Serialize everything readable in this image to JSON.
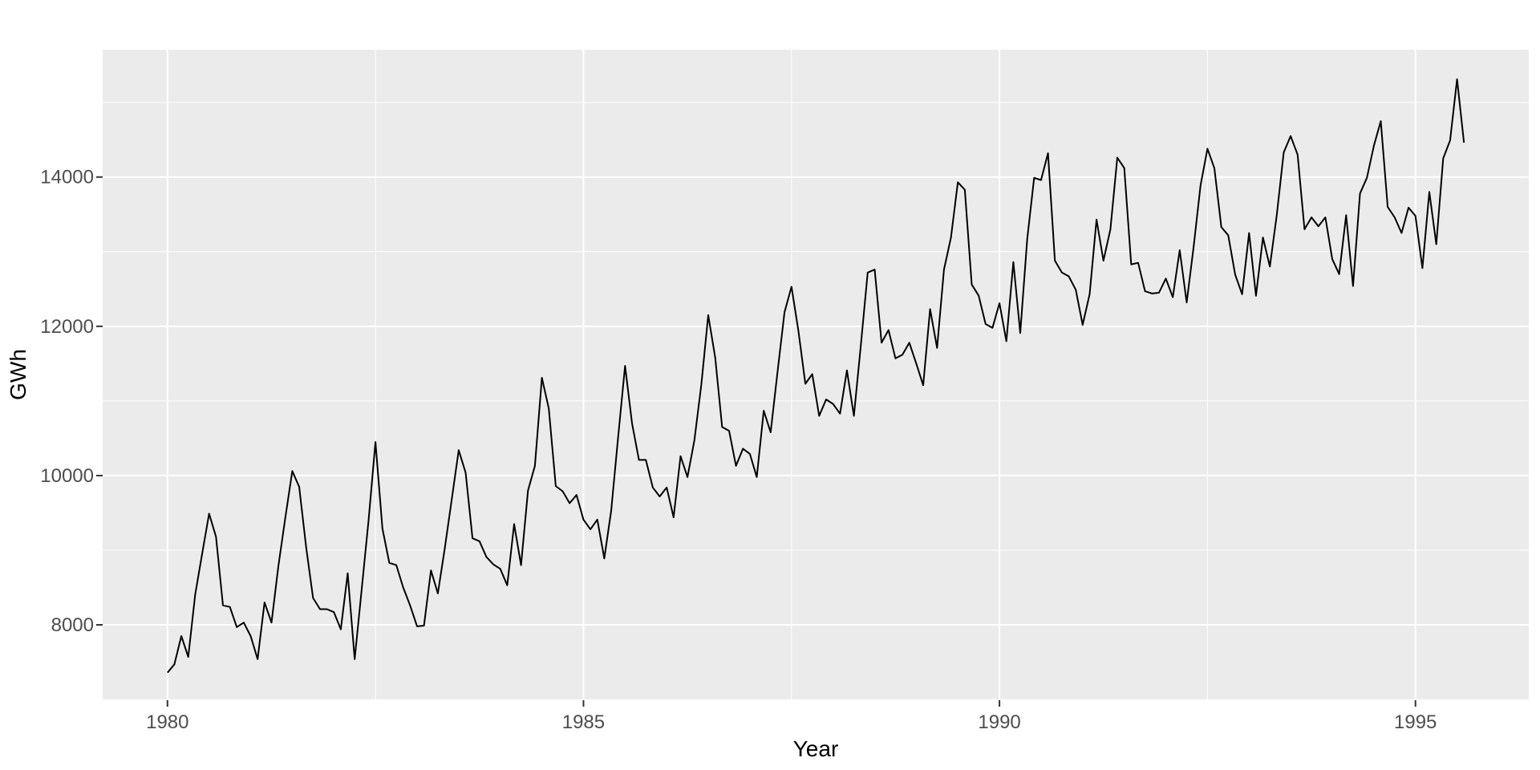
{
  "figure": {
    "background": "#FFFFFF",
    "panel_background": "#EBEBEB",
    "grid_major_color": "#FFFFFF",
    "grid_minor_color": "#FFFFFF",
    "line_color": "#000000",
    "tick_mark_color": "#333333",
    "tick_label_color": "#4D4D4D",
    "axis_title_color": "#000000"
  },
  "chart_data": {
    "type": "line",
    "title": "",
    "xlabel": "Year",
    "ylabel": "GWh",
    "legend": "none",
    "grid": "on",
    "x_start": 1980.0,
    "frequency": 12,
    "xlim": [
      1979.221,
      1996.362
    ],
    "ylim": [
      6990,
      15706
    ],
    "x_ticks": {
      "major": [
        1980,
        1985,
        1990,
        1995
      ],
      "minor": [
        1982.5,
        1987.5,
        1992.5
      ],
      "labels": [
        "1980",
        "1985",
        "1990",
        "1995"
      ]
    },
    "y_ticks": {
      "major": [
        8000,
        10000,
        12000,
        14000
      ],
      "minor": [
        7000,
        9000,
        11000,
        13000,
        15000
      ],
      "labels": [
        "8000",
        "10000",
        "12000",
        "14000"
      ]
    },
    "series": [
      {
        "name": "GWh",
        "values": [
          7360,
          7470,
          7850,
          7570,
          8410,
          8950,
          9490,
          9180,
          8260,
          8240,
          7970,
          8030,
          7850,
          7540,
          8300,
          8030,
          8790,
          9440,
          10060,
          9850,
          9040,
          8360,
          8210,
          8210,
          8170,
          7940,
          8690,
          7540,
          8460,
          9400,
          10450,
          9290,
          8830,
          8800,
          8500,
          8260,
          7980,
          7990,
          8730,
          8420,
          9030,
          9680,
          10340,
          10040,
          9160,
          9120,
          8910,
          8810,
          8750,
          8530,
          9350,
          8800,
          9800,
          10130,
          11310,
          10900,
          9860,
          9790,
          9630,
          9740,
          9410,
          9280,
          9410,
          8890,
          9530,
          10520,
          11470,
          10700,
          10210,
          10210,
          9840,
          9720,
          9840,
          9440,
          10260,
          9980,
          10470,
          11220,
          12150,
          11580,
          10650,
          10600,
          10130,
          10360,
          10290,
          9980,
          10870,
          10580,
          11400,
          12190,
          12530,
          11940,
          11230,
          11360,
          10800,
          11020,
          10960,
          10830,
          11410,
          10800,
          11740,
          12720,
          12760,
          11780,
          11950,
          11570,
          11620,
          11780,
          11500,
          11210,
          12230,
          11710,
          12760,
          13190,
          13930,
          13830,
          12560,
          12410,
          12030,
          11980,
          12310,
          11800,
          12860,
          11910,
          13170,
          13990,
          13960,
          14320,
          12880,
          12720,
          12670,
          12490,
          12020,
          12430,
          13430,
          12880,
          13300,
          14260,
          14120,
          12830,
          12850,
          12470,
          12440,
          12450,
          12640,
          12390,
          13020,
          12320,
          13060,
          13890,
          14380,
          14120,
          13330,
          13220,
          12690,
          12430,
          13250,
          12410,
          13190,
          12800,
          13490,
          14330,
          14550,
          14300,
          13300,
          13460,
          13340,
          13460,
          12900,
          12700,
          13490,
          12540,
          13780,
          13990,
          14420,
          14750,
          13600,
          13460,
          13250,
          13590,
          13480,
          12780,
          13800,
          13100,
          14250,
          14490,
          15310,
          14460
        ]
      }
    ]
  }
}
